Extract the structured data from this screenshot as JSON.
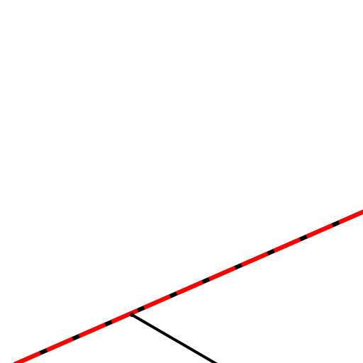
{
  "colors": {
    "background": "#ffffff",
    "line_base": "#000000",
    "line_highlight": "#ff0000",
    "branch": "#000000"
  },
  "diagram": {
    "main_line": {
      "style": "dashed-red-over-black",
      "description_icon": "dashed-highlight-line"
    },
    "branch_line": {
      "style": "solid-black"
    }
  }
}
